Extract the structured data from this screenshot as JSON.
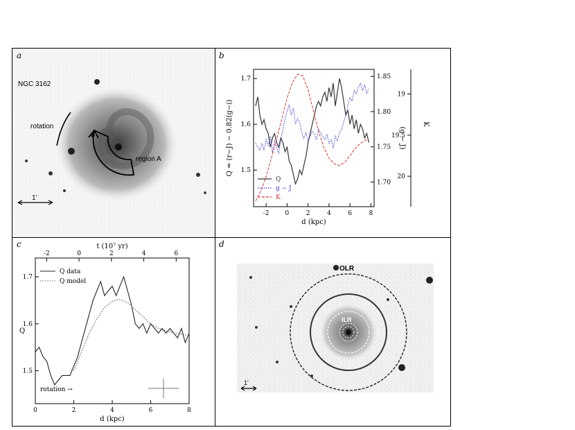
{
  "panels": {
    "a": {
      "label": "a",
      "galaxy_label": "NGC 3162",
      "rotation_label": "rotation",
      "region_label": "region A",
      "scale_label": "1'"
    },
    "b": {
      "label": "b"
    },
    "c": {
      "label": "c"
    },
    "d": {
      "label": "d",
      "olr_label": "OLR",
      "ilr_label": "ILR",
      "scale_label": "1'"
    }
  },
  "colors": {
    "Q": "#333333",
    "g_J": "#3b3bd6",
    "Ks": "#e03030",
    "model": "#555555"
  },
  "chart_data": [
    {
      "panel": "b",
      "type": "line",
      "xlabel": "d  (kpc)",
      "ylabel_left": "Q = (r−J) − 0.82(g−i)",
      "ylabel_right1": "(g − J)",
      "ylabel_right2": "K",
      "xlim": [
        -3.2,
        8.3
      ],
      "xticks": [
        -2,
        0,
        2,
        4,
        6,
        8
      ],
      "ylim_left": [
        1.42,
        1.72
      ],
      "yticks_left": [
        1.5,
        1.6,
        1.7
      ],
      "ylim_right1": [
        1.665,
        1.86
      ],
      "yticks_right1": [
        1.7,
        1.75,
        1.8,
        1.85
      ],
      "ylim_right2": [
        20.37,
        18.7
      ],
      "yticks_right2": [
        19,
        19.5,
        20
      ],
      "legend": [
        "Q",
        "g − J",
        "K"
      ],
      "legend_position": "bottom-left",
      "series": [
        {
          "name": "Q",
          "axis": "left",
          "x": [
            -3.0,
            -2.8,
            -2.6,
            -2.4,
            -2.2,
            -2.0,
            -1.8,
            -1.6,
            -1.4,
            -1.2,
            -1.0,
            -0.8,
            -0.6,
            -0.4,
            -0.2,
            0.0,
            0.2,
            0.4,
            0.6,
            0.8,
            1.0,
            1.2,
            1.4,
            1.6,
            1.8,
            2.0,
            2.2,
            2.4,
            2.6,
            2.8,
            3.0,
            3.2,
            3.4,
            3.6,
            3.8,
            4.0,
            4.2,
            4.4,
            4.6,
            4.8,
            5.0,
            5.2,
            5.4,
            5.6,
            5.8,
            6.0,
            6.2,
            6.4,
            6.6,
            6.8,
            7.0,
            7.2,
            7.4,
            7.6,
            7.8
          ],
          "y": [
            1.64,
            1.66,
            1.62,
            1.6,
            1.61,
            1.59,
            1.58,
            1.55,
            1.57,
            1.58,
            1.56,
            1.55,
            1.57,
            1.56,
            1.54,
            1.55,
            1.52,
            1.51,
            1.49,
            1.47,
            1.48,
            1.5,
            1.49,
            1.51,
            1.53,
            1.56,
            1.58,
            1.6,
            1.62,
            1.64,
            1.65,
            1.64,
            1.66,
            1.67,
            1.65,
            1.68,
            1.66,
            1.69,
            1.64,
            1.67,
            1.7,
            1.68,
            1.65,
            1.62,
            1.63,
            1.6,
            1.62,
            1.59,
            1.61,
            1.58,
            1.6,
            1.59,
            1.57,
            1.58,
            1.56
          ]
        },
        {
          "name": "g − J",
          "axis": "right1",
          "x": [
            -3.0,
            -2.8,
            -2.6,
            -2.4,
            -2.2,
            -2.0,
            -1.8,
            -1.6,
            -1.4,
            -1.2,
            -1.0,
            -0.8,
            -0.6,
            -0.4,
            -0.2,
            0.0,
            0.2,
            0.4,
            0.6,
            0.8,
            1.0,
            1.2,
            1.4,
            1.6,
            1.8,
            2.0,
            2.2,
            2.4,
            2.6,
            2.8,
            3.0,
            3.2,
            3.4,
            3.6,
            3.8,
            4.0,
            4.2,
            4.4,
            4.6,
            4.8,
            5.0,
            5.2,
            5.4,
            5.6,
            5.8,
            6.0,
            6.2,
            6.4,
            6.6,
            6.8,
            7.0,
            7.2,
            7.4,
            7.6,
            7.8
          ],
          "y": [
            1.755,
            1.75,
            1.745,
            1.755,
            1.745,
            1.76,
            1.752,
            1.765,
            1.742,
            1.758,
            1.75,
            1.74,
            1.76,
            1.775,
            1.79,
            1.8,
            1.81,
            1.795,
            1.805,
            1.782,
            1.79,
            1.785,
            1.77,
            1.762,
            1.77,
            1.758,
            1.765,
            1.772,
            1.768,
            1.76,
            1.775,
            1.77,
            1.765,
            1.76,
            1.768,
            1.755,
            1.76,
            1.748,
            1.765,
            1.758,
            1.77,
            1.775,
            1.785,
            1.795,
            1.81,
            1.82,
            1.815,
            1.83,
            1.825,
            1.835,
            1.84,
            1.83,
            1.838,
            1.826,
            1.832
          ]
        },
        {
          "name": "K",
          "axis": "right2",
          "x": [
            -3.0,
            -2.5,
            -2.0,
            -1.5,
            -1.0,
            -0.5,
            0.0,
            0.5,
            1.0,
            1.5,
            2.0,
            2.5,
            3.0,
            3.5,
            4.0,
            4.5,
            5.0,
            5.5,
            6.0,
            6.5,
            7.0,
            7.5,
            7.8
          ],
          "y": [
            20.3,
            20.18,
            20.0,
            19.78,
            19.55,
            19.3,
            19.05,
            18.86,
            18.76,
            18.78,
            18.95,
            19.2,
            19.45,
            19.65,
            19.78,
            19.85,
            19.87,
            19.83,
            19.75,
            19.66,
            19.6,
            19.56,
            19.55
          ]
        }
      ]
    },
    {
      "panel": "c",
      "type": "line",
      "xlabel": "d  (kpc)",
      "ylabel": "Q",
      "top_xlabel": "t  (10⁷ yr)",
      "xlim": [
        0,
        8
      ],
      "xticks": [
        0,
        2,
        4,
        6,
        8
      ],
      "top_xlim": [
        -2.7,
        6.8
      ],
      "top_xticks": [
        -2,
        0,
        2,
        4,
        6
      ],
      "ylim": [
        1.43,
        1.74
      ],
      "yticks": [
        1.5,
        1.6,
        1.7
      ],
      "legend": [
        "Q data",
        "Q model"
      ],
      "legend_position": "top-left",
      "annotation": "rotation →",
      "series": [
        {
          "name": "Q data",
          "style": "solid",
          "x": [
            0.0,
            0.2,
            0.4,
            0.6,
            0.8,
            1.0,
            1.2,
            1.4,
            1.6,
            1.8,
            2.0,
            2.2,
            2.4,
            2.6,
            2.8,
            3.0,
            3.2,
            3.4,
            3.6,
            3.8,
            4.0,
            4.2,
            4.4,
            4.6,
            4.8,
            5.0,
            5.2,
            5.4,
            5.6,
            5.8,
            6.0,
            6.2,
            6.4,
            6.6,
            6.8,
            7.0,
            7.2,
            7.4,
            7.6,
            7.8,
            8.0
          ],
          "y": [
            1.54,
            1.55,
            1.53,
            1.52,
            1.49,
            1.47,
            1.48,
            1.49,
            1.49,
            1.49,
            1.51,
            1.53,
            1.56,
            1.59,
            1.62,
            1.65,
            1.67,
            1.69,
            1.66,
            1.67,
            1.68,
            1.66,
            1.68,
            1.7,
            1.67,
            1.64,
            1.6,
            1.59,
            1.6,
            1.58,
            1.6,
            1.59,
            1.58,
            1.59,
            1.58,
            1.59,
            1.58,
            1.57,
            1.59,
            1.56,
            1.58
          ]
        },
        {
          "name": "Q model",
          "style": "dotted",
          "x": [
            2.0,
            2.4,
            2.8,
            3.2,
            3.6,
            4.0,
            4.4,
            4.8,
            5.2,
            5.6,
            6.0,
            6.4,
            6.8,
            7.2,
            7.6,
            8.0
          ],
          "y": [
            1.5,
            1.54,
            1.58,
            1.61,
            1.635,
            1.648,
            1.652,
            1.645,
            1.63,
            1.615,
            1.6,
            1.59,
            1.585,
            1.58,
            1.578,
            1.575
          ]
        }
      ]
    }
  ]
}
